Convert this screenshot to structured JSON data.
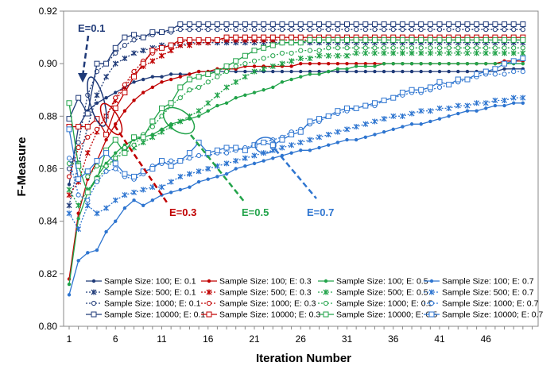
{
  "chart_data": {
    "type": "line",
    "title": "",
    "xlabel": "Iteration Number",
    "ylabel": "F-Measure",
    "xlim": [
      0,
      50
    ],
    "ylim": [
      0.8,
      0.92
    ],
    "x_ticks": [
      "1",
      "6",
      "11",
      "16",
      "21",
      "26",
      "31",
      "36",
      "41",
      "46"
    ],
    "y_ticks": [
      "0.80",
      "0.82",
      "0.84",
      "0.86",
      "0.88",
      "0.90",
      "0.92"
    ],
    "grid": false,
    "legend_position": "bottom",
    "annotations": [
      {
        "text": "E=0.1",
        "color": "#1f3a78"
      },
      {
        "text": "E=0.3",
        "color": "#c00000"
      },
      {
        "text": "E=0.5",
        "color": "#22a34a"
      },
      {
        "text": "E=0.7",
        "color": "#2e75d0"
      }
    ],
    "series": [
      {
        "name": "Sample Size: 100; E: 0.1",
        "color": "#1f3a78",
        "marker": "dot",
        "dash": "solid",
        "values": [
          0.854,
          0.876,
          0.882,
          0.885,
          0.887,
          0.889,
          0.891,
          0.893,
          0.894,
          0.895,
          0.895,
          0.896,
          0.896,
          0.896,
          0.897,
          0.897,
          0.897,
          0.897,
          0.897,
          0.897,
          0.897,
          0.897,
          0.897,
          0.897,
          0.897,
          0.897,
          0.897,
          0.897,
          0.897,
          0.897,
          0.897,
          0.897,
          0.897,
          0.897,
          0.897,
          0.897,
          0.897,
          0.897,
          0.897,
          0.897,
          0.897,
          0.897,
          0.897,
          0.897,
          0.897,
          0.897,
          0.897,
          0.898,
          0.898,
          0.898
        ]
      },
      {
        "name": "Sample Size: 500; E: 0.1",
        "color": "#1f3a78",
        "marker": "star",
        "dash": "dotted",
        "values": [
          0.846,
          0.862,
          0.876,
          0.888,
          0.895,
          0.9,
          0.902,
          0.904,
          0.905,
          0.906,
          0.907,
          0.907,
          0.907,
          0.908,
          0.908,
          0.908,
          0.908,
          0.908,
          0.908,
          0.908,
          0.908,
          0.908,
          0.908,
          0.908,
          0.908,
          0.908,
          0.908,
          0.908,
          0.908,
          0.908,
          0.908,
          0.908,
          0.908,
          0.908,
          0.908,
          0.908,
          0.908,
          0.908,
          0.908,
          0.908,
          0.908,
          0.908,
          0.908,
          0.908,
          0.908,
          0.908,
          0.908,
          0.908,
          0.908,
          0.908
        ]
      },
      {
        "name": "Sample Size: 1000; E: 0.1",
        "color": "#1f3a78",
        "marker": "circle-open",
        "dash": "dotted",
        "values": [
          0.86,
          0.87,
          0.888,
          0.897,
          0.9,
          0.904,
          0.907,
          0.909,
          0.91,
          0.911,
          0.912,
          0.912,
          0.913,
          0.913,
          0.913,
          0.913,
          0.913,
          0.913,
          0.913,
          0.913,
          0.913,
          0.913,
          0.913,
          0.913,
          0.913,
          0.913,
          0.913,
          0.913,
          0.913,
          0.913,
          0.913,
          0.913,
          0.913,
          0.913,
          0.913,
          0.913,
          0.913,
          0.913,
          0.913,
          0.913,
          0.913,
          0.913,
          0.913,
          0.913,
          0.913,
          0.913,
          0.913,
          0.913,
          0.913,
          0.913
        ]
      },
      {
        "name": "Sample Size: 10000; E: 0.1",
        "color": "#1f3a78",
        "marker": "square-open",
        "dash": "solid",
        "values": [
          0.879,
          0.887,
          0.881,
          0.9,
          0.9,
          0.906,
          0.91,
          0.911,
          0.91,
          0.912,
          0.912,
          0.913,
          0.915,
          0.915,
          0.915,
          0.915,
          0.915,
          0.915,
          0.915,
          0.915,
          0.915,
          0.915,
          0.915,
          0.915,
          0.915,
          0.915,
          0.915,
          0.915,
          0.915,
          0.915,
          0.915,
          0.915,
          0.915,
          0.915,
          0.915,
          0.915,
          0.915,
          0.915,
          0.915,
          0.915,
          0.915,
          0.915,
          0.915,
          0.915,
          0.915,
          0.915,
          0.915,
          0.915,
          0.915,
          0.915
        ]
      },
      {
        "name": "Sample Size: 100; E: 0.3",
        "color": "#c00000",
        "marker": "dot",
        "dash": "solid",
        "values": [
          0.818,
          0.843,
          0.856,
          0.863,
          0.871,
          0.877,
          0.882,
          0.886,
          0.889,
          0.891,
          0.893,
          0.894,
          0.895,
          0.896,
          0.897,
          0.897,
          0.898,
          0.898,
          0.898,
          0.899,
          0.899,
          0.899,
          0.899,
          0.899,
          0.899,
          0.9,
          0.9,
          0.9,
          0.9,
          0.9,
          0.9,
          0.9,
          0.9,
          0.9,
          0.9,
          0.9,
          0.9,
          0.9,
          0.9,
          0.9,
          0.9,
          0.9,
          0.9,
          0.9,
          0.9,
          0.9,
          0.9,
          0.901,
          0.901,
          0.901
        ]
      },
      {
        "name": "Sample Size: 500; E: 0.3",
        "color": "#c00000",
        "marker": "star",
        "dash": "dotted",
        "values": [
          0.85,
          0.855,
          0.866,
          0.874,
          0.88,
          0.886,
          0.891,
          0.896,
          0.899,
          0.901,
          0.903,
          0.905,
          0.907,
          0.907,
          0.908,
          0.908,
          0.909,
          0.909,
          0.909,
          0.909,
          0.909,
          0.909,
          0.909,
          0.909,
          0.909,
          0.909,
          0.909,
          0.909,
          0.909,
          0.909,
          0.909,
          0.909,
          0.909,
          0.909,
          0.909,
          0.909,
          0.909,
          0.909,
          0.909,
          0.909,
          0.909,
          0.909,
          0.909,
          0.909,
          0.909,
          0.909,
          0.909,
          0.909,
          0.909,
          0.909
        ]
      },
      {
        "name": "Sample Size: 1000; E: 0.3",
        "color": "#c00000",
        "marker": "circle-open",
        "dash": "dotted",
        "values": [
          0.857,
          0.868,
          0.872,
          0.875,
          0.88,
          0.887,
          0.892,
          0.897,
          0.901,
          0.904,
          0.906,
          0.907,
          0.908,
          0.909,
          0.909,
          0.909,
          0.909,
          0.91,
          0.91,
          0.91,
          0.91,
          0.91,
          0.91,
          0.91,
          0.91,
          0.91,
          0.91,
          0.91,
          0.91,
          0.91,
          0.91,
          0.91,
          0.91,
          0.91,
          0.91,
          0.91,
          0.91,
          0.91,
          0.91,
          0.91,
          0.91,
          0.91,
          0.91,
          0.91,
          0.91,
          0.91,
          0.91,
          0.91,
          0.91,
          0.91
        ]
      },
      {
        "name": "Sample Size: 10000; E: 0.3",
        "color": "#c00000",
        "marker": "square-open",
        "dash": "solid",
        "values": [
          0.876,
          0.876,
          0.876,
          0.879,
          0.873,
          0.883,
          0.889,
          0.895,
          0.9,
          0.905,
          0.906,
          0.907,
          0.909,
          0.909,
          0.909,
          0.909,
          0.909,
          0.91,
          0.91,
          0.91,
          0.91,
          0.91,
          0.91,
          0.91,
          0.91,
          0.91,
          0.91,
          0.91,
          0.91,
          0.91,
          0.91,
          0.91,
          0.91,
          0.91,
          0.91,
          0.91,
          0.91,
          0.91,
          0.91,
          0.91,
          0.91,
          0.91,
          0.91,
          0.91,
          0.91,
          0.91,
          0.91,
          0.91,
          0.91,
          0.91
        ]
      },
      {
        "name": "Sample Size: 100; E: 0.5",
        "color": "#22a34a",
        "marker": "dot",
        "dash": "solid",
        "values": [
          0.816,
          0.841,
          0.851,
          0.857,
          0.862,
          0.866,
          0.869,
          0.871,
          0.872,
          0.873,
          0.875,
          0.877,
          0.878,
          0.879,
          0.88,
          0.882,
          0.884,
          0.885,
          0.887,
          0.888,
          0.889,
          0.89,
          0.891,
          0.893,
          0.894,
          0.895,
          0.896,
          0.896,
          0.897,
          0.898,
          0.898,
          0.899,
          0.899,
          0.899,
          0.9,
          0.9,
          0.9,
          0.9,
          0.9,
          0.9,
          0.9,
          0.9,
          0.9,
          0.9,
          0.9,
          0.9,
          0.9,
          0.9,
          0.9,
          0.9
        ]
      },
      {
        "name": "Sample Size: 500; E: 0.5",
        "color": "#22a34a",
        "marker": "star",
        "dash": "dotted",
        "values": [
          0.852,
          0.846,
          0.852,
          0.856,
          0.86,
          0.864,
          0.866,
          0.868,
          0.87,
          0.872,
          0.874,
          0.876,
          0.878,
          0.88,
          0.882,
          0.885,
          0.888,
          0.891,
          0.893,
          0.895,
          0.897,
          0.898,
          0.899,
          0.9,
          0.901,
          0.902,
          0.902,
          0.903,
          0.903,
          0.903,
          0.903,
          0.904,
          0.904,
          0.904,
          0.904,
          0.904,
          0.904,
          0.904,
          0.904,
          0.904,
          0.904,
          0.904,
          0.904,
          0.904,
          0.904,
          0.904,
          0.904,
          0.904,
          0.904,
          0.904
        ]
      },
      {
        "name": "Sample Size: 1000; E: 0.5",
        "color": "#22a34a",
        "marker": "circle-open",
        "dash": "dotted",
        "values": [
          0.862,
          0.862,
          0.857,
          0.861,
          0.861,
          0.864,
          0.868,
          0.869,
          0.873,
          0.876,
          0.88,
          0.884,
          0.887,
          0.89,
          0.891,
          0.893,
          0.895,
          0.897,
          0.899,
          0.9,
          0.901,
          0.902,
          0.903,
          0.904,
          0.904,
          0.905,
          0.905,
          0.905,
          0.906,
          0.906,
          0.906,
          0.906,
          0.906,
          0.906,
          0.906,
          0.906,
          0.906,
          0.906,
          0.906,
          0.906,
          0.906,
          0.906,
          0.906,
          0.906,
          0.906,
          0.906,
          0.906,
          0.906,
          0.906,
          0.906
        ]
      },
      {
        "name": "Sample Size: 10000; E: 0.5",
        "color": "#22a34a",
        "marker": "square-open",
        "dash": "solid",
        "values": [
          0.885,
          0.861,
          0.851,
          0.856,
          0.867,
          0.871,
          0.866,
          0.872,
          0.872,
          0.878,
          0.883,
          0.885,
          0.891,
          0.894,
          0.895,
          0.896,
          0.897,
          0.899,
          0.901,
          0.903,
          0.905,
          0.906,
          0.907,
          0.908,
          0.908,
          0.908,
          0.909,
          0.909,
          0.909,
          0.909,
          0.909,
          0.909,
          0.909,
          0.909,
          0.909,
          0.909,
          0.909,
          0.909,
          0.909,
          0.909,
          0.909,
          0.909,
          0.909,
          0.909,
          0.909,
          0.909,
          0.909,
          0.909,
          0.909,
          0.909
        ]
      },
      {
        "name": "Sample Size: 100; E: 0.7",
        "color": "#2e75d0",
        "marker": "dot",
        "dash": "solid",
        "values": [
          0.812,
          0.825,
          0.828,
          0.829,
          0.836,
          0.84,
          0.845,
          0.848,
          0.846,
          0.848,
          0.85,
          0.851,
          0.852,
          0.853,
          0.855,
          0.856,
          0.857,
          0.858,
          0.86,
          0.861,
          0.862,
          0.863,
          0.864,
          0.865,
          0.866,
          0.867,
          0.867,
          0.868,
          0.869,
          0.87,
          0.871,
          0.871,
          0.872,
          0.873,
          0.874,
          0.875,
          0.876,
          0.877,
          0.877,
          0.878,
          0.879,
          0.88,
          0.881,
          0.882,
          0.882,
          0.883,
          0.884,
          0.884,
          0.885,
          0.885
        ]
      },
      {
        "name": "Sample Size: 500; E: 0.7",
        "color": "#2e75d0",
        "marker": "star",
        "dash": "dotted",
        "values": [
          0.843,
          0.837,
          0.846,
          0.843,
          0.845,
          0.848,
          0.85,
          0.851,
          0.852,
          0.853,
          0.853,
          0.855,
          0.857,
          0.858,
          0.859,
          0.86,
          0.861,
          0.862,
          0.863,
          0.864,
          0.865,
          0.866,
          0.867,
          0.868,
          0.869,
          0.87,
          0.871,
          0.872,
          0.873,
          0.874,
          0.875,
          0.876,
          0.877,
          0.878,
          0.879,
          0.88,
          0.88,
          0.881,
          0.882,
          0.882,
          0.883,
          0.883,
          0.884,
          0.884,
          0.885,
          0.885,
          0.886,
          0.886,
          0.887,
          0.887
        ]
      },
      {
        "name": "Sample Size: 1000; E: 0.7",
        "color": "#2e75d0",
        "marker": "circle-open",
        "dash": "dotted",
        "values": [
          0.864,
          0.85,
          0.848,
          0.855,
          0.859,
          0.86,
          0.857,
          0.856,
          0.858,
          0.861,
          0.862,
          0.863,
          0.863,
          0.864,
          0.865,
          0.865,
          0.866,
          0.866,
          0.867,
          0.868,
          0.869,
          0.87,
          0.871,
          0.872,
          0.874,
          0.875,
          0.877,
          0.878,
          0.88,
          0.881,
          0.882,
          0.883,
          0.884,
          0.884,
          0.886,
          0.887,
          0.888,
          0.889,
          0.889,
          0.89,
          0.891,
          0.892,
          0.893,
          0.894,
          0.895,
          0.896,
          0.896,
          0.896,
          0.897,
          0.897
        ]
      },
      {
        "name": "Sample Size: 10000; E: 0.7",
        "color": "#2e75d0",
        "marker": "square-open",
        "dash": "solid",
        "values": [
          0.875,
          0.856,
          0.859,
          0.863,
          0.866,
          0.862,
          0.858,
          0.857,
          0.859,
          0.86,
          0.863,
          0.861,
          0.863,
          0.866,
          0.87,
          0.866,
          0.867,
          0.868,
          0.868,
          0.867,
          0.869,
          0.87,
          0.869,
          0.871,
          0.873,
          0.874,
          0.878,
          0.879,
          0.88,
          0.882,
          0.883,
          0.883,
          0.884,
          0.885,
          0.886,
          0.887,
          0.889,
          0.89,
          0.89,
          0.891,
          0.893,
          0.892,
          0.894,
          0.894,
          0.896,
          0.897,
          0.898,
          0.9,
          0.901,
          0.902
        ]
      }
    ]
  }
}
